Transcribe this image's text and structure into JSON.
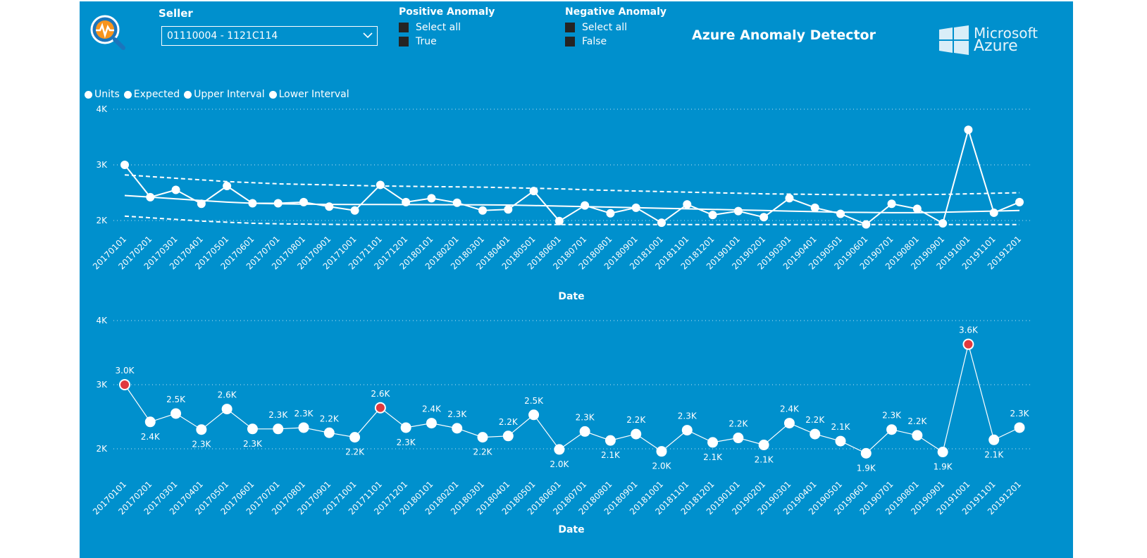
{
  "seller": {
    "label": "Seller",
    "value": "01110004 - 1121C114"
  },
  "positive_anomaly": {
    "title": "Positive Anomaly",
    "options": [
      "Select all",
      "True"
    ]
  },
  "negative_anomaly": {
    "title": "Negative Anomaly",
    "options": [
      "Select all",
      "False"
    ]
  },
  "title": "Azure Anomaly Detector",
  "brand": {
    "line1": "Microsoft",
    "line2": "Azure"
  },
  "colors": {
    "background": "#0090cd",
    "line": "#ffffff",
    "anomaly": "#e0393e",
    "checkbox": "#252423"
  },
  "legend": [
    "Units",
    "Expected",
    "Upper Interval",
    "Lower Interval"
  ],
  "chart_data": [
    {
      "type": "line",
      "xlabel": "Date",
      "ylabel": "",
      "ylim": [
        1700,
        4000
      ],
      "yticks": [
        "2K",
        "3K",
        "4K"
      ],
      "categories": [
        "20170101",
        "20170201",
        "20170301",
        "20170401",
        "20170501",
        "20170601",
        "20170701",
        "20170801",
        "20170901",
        "20171001",
        "20171101",
        "20171201",
        "20180101",
        "20180201",
        "20180301",
        "20180401",
        "20180501",
        "20180601",
        "20180701",
        "20180801",
        "20180901",
        "20181001",
        "20181101",
        "20181201",
        "20190101",
        "20190201",
        "20190301",
        "20190401",
        "20190501",
        "20190601",
        "20190701",
        "20190801",
        "20190901",
        "20191001",
        "20191101",
        "20191201"
      ],
      "series": [
        {
          "name": "Units",
          "values": [
            3000,
            2420,
            2550,
            2300,
            2620,
            2310,
            2310,
            2330,
            2250,
            2180,
            2640,
            2330,
            2400,
            2320,
            2180,
            2200,
            2530,
            1990,
            2270,
            2130,
            2230,
            1960,
            2290,
            2100,
            2170,
            2060,
            2400,
            2230,
            2120,
            1930,
            2300,
            2210,
            1950,
            3630,
            2140,
            2330
          ]
        },
        {
          "name": "Expected",
          "values": [
            2450,
            2420,
            2390,
            2360,
            2330,
            2310,
            2300,
            2295,
            2290,
            2288,
            2287,
            2286,
            2285,
            2284,
            2282,
            2278,
            2270,
            2260,
            2250,
            2240,
            2230,
            2220,
            2210,
            2200,
            2190,
            2180,
            2170,
            2160,
            2150,
            2145,
            2140,
            2140,
            2150,
            2160,
            2170,
            2180
          ]
        },
        {
          "name": "Upper Interval",
          "values": [
            2820,
            2790,
            2760,
            2730,
            2700,
            2680,
            2660,
            2650,
            2640,
            2630,
            2620,
            2615,
            2610,
            2605,
            2600,
            2590,
            2580,
            2570,
            2555,
            2540,
            2530,
            2520,
            2510,
            2500,
            2490,
            2480,
            2475,
            2470,
            2465,
            2460,
            2460,
            2465,
            2470,
            2480,
            2490,
            2500
          ]
        },
        {
          "name": "Lower Interval",
          "values": [
            2080,
            2050,
            2020,
            1990,
            1970,
            1950,
            1940,
            1935,
            1930,
            1928,
            1928,
            1928,
            1928,
            1928,
            1928,
            1928,
            1928,
            1928,
            1928,
            1928,
            1928,
            1928,
            1928,
            1928,
            1928,
            1928,
            1928,
            1928,
            1928,
            1928,
            1928,
            1928,
            1928,
            1928,
            1928,
            1928
          ]
        }
      ]
    },
    {
      "type": "line",
      "xlabel": "Date",
      "ylabel": "",
      "ylim": [
        1700,
        4000
      ],
      "yticks": [
        "2K",
        "3K",
        "4K"
      ],
      "categories": [
        "20170101",
        "20170201",
        "20170301",
        "20170401",
        "20170501",
        "20170601",
        "20170701",
        "20170801",
        "20170901",
        "20171001",
        "20171101",
        "20171201",
        "20180101",
        "20180201",
        "20180301",
        "20180401",
        "20180501",
        "20180601",
        "20180701",
        "20180801",
        "20180901",
        "20181001",
        "20181101",
        "20181201",
        "20190101",
        "20190201",
        "20190301",
        "20190401",
        "20190501",
        "20190601",
        "20190701",
        "20190801",
        "20190901",
        "20191001",
        "20191101",
        "20191201"
      ],
      "series": [
        {
          "name": "Units",
          "values": [
            3000,
            2420,
            2550,
            2300,
            2620,
            2310,
            2310,
            2330,
            2250,
            2180,
            2640,
            2330,
            2400,
            2320,
            2180,
            2200,
            2530,
            1990,
            2270,
            2130,
            2230,
            1960,
            2290,
            2100,
            2170,
            2060,
            2400,
            2230,
            2120,
            1930,
            2300,
            2210,
            1950,
            3630,
            2140,
            2330
          ]
        }
      ],
      "data_labels": [
        "3.0K",
        "2.4K",
        "2.5K",
        "2.3K",
        "2.6K",
        "2.3K",
        "2.3K",
        "2.3K",
        "2.2K",
        "2.2K",
        "2.6K",
        "2.3K",
        "2.4K",
        "2.3K",
        "2.2K",
        "2.2K",
        "2.5K",
        "2.0K",
        "2.3K",
        "2.1K",
        "2.2K",
        "2.0K",
        "2.3K",
        "2.1K",
        "2.2K",
        "2.1K",
        "2.4K",
        "2.2K",
        "2.1K",
        "1.9K",
        "2.3K",
        "2.2K",
        "1.9K",
        "3.6K",
        "2.1K",
        "2.3K"
      ],
      "label_position": [
        "a",
        "b",
        "a",
        "b",
        "a",
        "b",
        "a",
        "a",
        "a",
        "b",
        "a",
        "b",
        "a",
        "a",
        "b",
        "a",
        "a",
        "b",
        "a",
        "b",
        "a",
        "b",
        "a",
        "b",
        "a",
        "b",
        "a",
        "a",
        "a",
        "b",
        "a",
        "a",
        "b",
        "a",
        "b",
        "a"
      ],
      "anomalies": [
        0,
        10,
        33
      ]
    }
  ]
}
